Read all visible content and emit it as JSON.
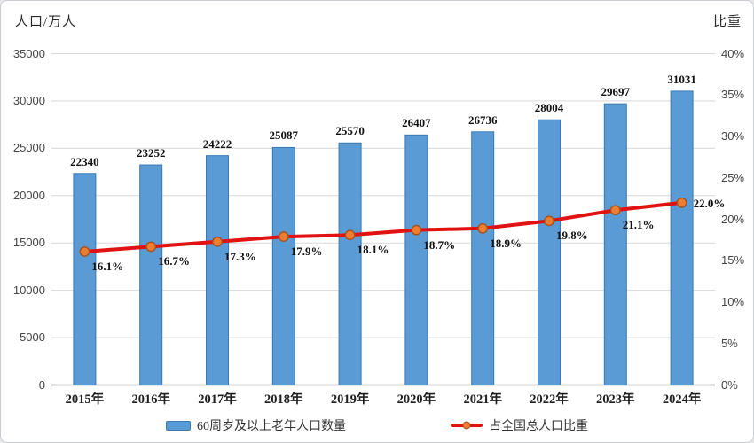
{
  "colors": {
    "bar_fill": "#5B9BD5",
    "bar_border": "#3A78B4",
    "line": "#E01212",
    "marker_fill": "#ED7D31",
    "marker_border": "#A5511B",
    "gridline": "#D9D9D9",
    "axis_line": "#A3A3A3",
    "tick_text": "#454545",
    "label_text": "#111111"
  },
  "legend": {
    "items": [
      {
        "label": "60周岁及以上老年人口数量",
        "swatch": "bar-swatch"
      },
      {
        "label": "占全国总人口比重",
        "swatch": "line-swatch"
      }
    ]
  },
  "chart_data": {
    "type": "bar+line combo",
    "categories": [
      "2015年",
      "2016年",
      "2017年",
      "2018年",
      "2019年",
      "2020年",
      "2021年",
      "2022年",
      "2023年",
      "2024年"
    ],
    "series": [
      {
        "name": "60周岁及以上老年人口数量",
        "type": "bar",
        "axis": "left",
        "values": [
          22340,
          23252,
          24222,
          25087,
          25570,
          26407,
          26736,
          28004,
          29697,
          31031
        ],
        "value_labels": [
          "22340",
          "23252",
          "24222",
          "25087",
          "25570",
          "26407",
          "26736",
          "28004",
          "29697",
          "31031"
        ]
      },
      {
        "name": "占全国总人口比重",
        "type": "line",
        "axis": "right",
        "values": [
          16.1,
          16.7,
          17.3,
          17.9,
          18.1,
          18.7,
          18.9,
          19.8,
          21.1,
          22.0
        ],
        "value_labels": [
          "16.1%",
          "16.7%",
          "17.3%",
          "17.9%",
          "18.1%",
          "18.7%",
          "18.9%",
          "19.8%",
          "21.1%",
          "22.0%"
        ]
      }
    ],
    "left_axis": {
      "title": "人口/万人",
      "min": 0,
      "max": 35000,
      "step": 5000,
      "tick_labels": [
        "0",
        "5000",
        "10000",
        "15000",
        "20000",
        "25000",
        "30000",
        "35000"
      ]
    },
    "right_axis": {
      "title": "比重",
      "min": 0,
      "max": 40,
      "step": 5,
      "tick_labels": [
        "0%",
        "5%",
        "10%",
        "15%",
        "20%",
        "25%",
        "30%",
        "35%",
        "40%"
      ]
    },
    "grid": "horizontal",
    "legend_position": "bottom"
  }
}
